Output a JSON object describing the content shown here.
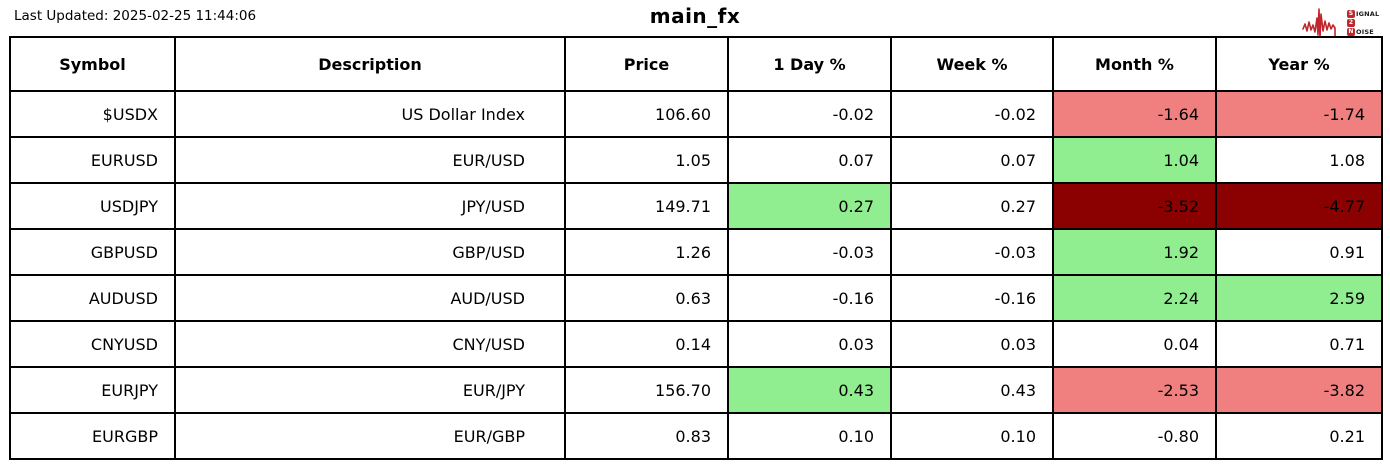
{
  "meta": {
    "last_updated": "Last Updated: 2025-02-25 11:44:06",
    "title": "main_fx"
  },
  "logo": {
    "line1_initial": "S",
    "line1_rest": "IGNAL",
    "line2_initial": "2",
    "line2_rest": "",
    "line3_initial": "N",
    "line3_rest": "OISE",
    "accent_color": "#c0272d"
  },
  "colors": {
    "positive_bg": "#90ee90",
    "negative_mild_bg": "#f08080",
    "negative_strong_bg": "#8b0000",
    "neutral_bg": "#ffffff",
    "border": "#000000"
  },
  "table": {
    "columns": [
      "Symbol",
      "Description",
      "Price",
      "1 Day %",
      "Week %",
      "Month %",
      "Year %"
    ],
    "rows": [
      {
        "values": [
          "$USDX",
          "US Dollar Index",
          "106.60",
          "-0.02",
          "-0.02",
          "-1.64",
          "-1.74"
        ],
        "bg": [
          null,
          null,
          null,
          null,
          null,
          "#f08080",
          "#f08080"
        ]
      },
      {
        "values": [
          "EURUSD",
          "EUR/USD",
          "1.05",
          "0.07",
          "0.07",
          "1.04",
          "1.08"
        ],
        "bg": [
          null,
          null,
          null,
          null,
          null,
          "#90ee90",
          null
        ]
      },
      {
        "values": [
          "USDJPY",
          "JPY/USD",
          "149.71",
          "0.27",
          "0.27",
          "-3.52",
          "-4.77"
        ],
        "bg": [
          null,
          null,
          null,
          "#90ee90",
          null,
          "#8b0000",
          "#8b0000"
        ]
      },
      {
        "values": [
          "GBPUSD",
          "GBP/USD",
          "1.26",
          "-0.03",
          "-0.03",
          "1.92",
          "0.91"
        ],
        "bg": [
          null,
          null,
          null,
          null,
          null,
          "#90ee90",
          null
        ]
      },
      {
        "values": [
          "AUDUSD",
          "AUD/USD",
          "0.63",
          "-0.16",
          "-0.16",
          "2.24",
          "2.59"
        ],
        "bg": [
          null,
          null,
          null,
          null,
          null,
          "#90ee90",
          "#90ee90"
        ]
      },
      {
        "values": [
          "CNYUSD",
          "CNY/USD",
          "0.14",
          "0.03",
          "0.03",
          "0.04",
          "0.71"
        ],
        "bg": [
          null,
          null,
          null,
          null,
          null,
          null,
          null
        ]
      },
      {
        "values": [
          "EURJPY",
          "EUR/JPY",
          "156.70",
          "0.43",
          "0.43",
          "-2.53",
          "-3.82"
        ],
        "bg": [
          null,
          null,
          null,
          "#90ee90",
          null,
          "#f08080",
          "#f08080"
        ]
      },
      {
        "values": [
          "EURGBP",
          "EUR/GBP",
          "0.83",
          "0.10",
          "0.10",
          "-0.80",
          "0.21"
        ],
        "bg": [
          null,
          null,
          null,
          null,
          null,
          null,
          null
        ]
      }
    ]
  }
}
